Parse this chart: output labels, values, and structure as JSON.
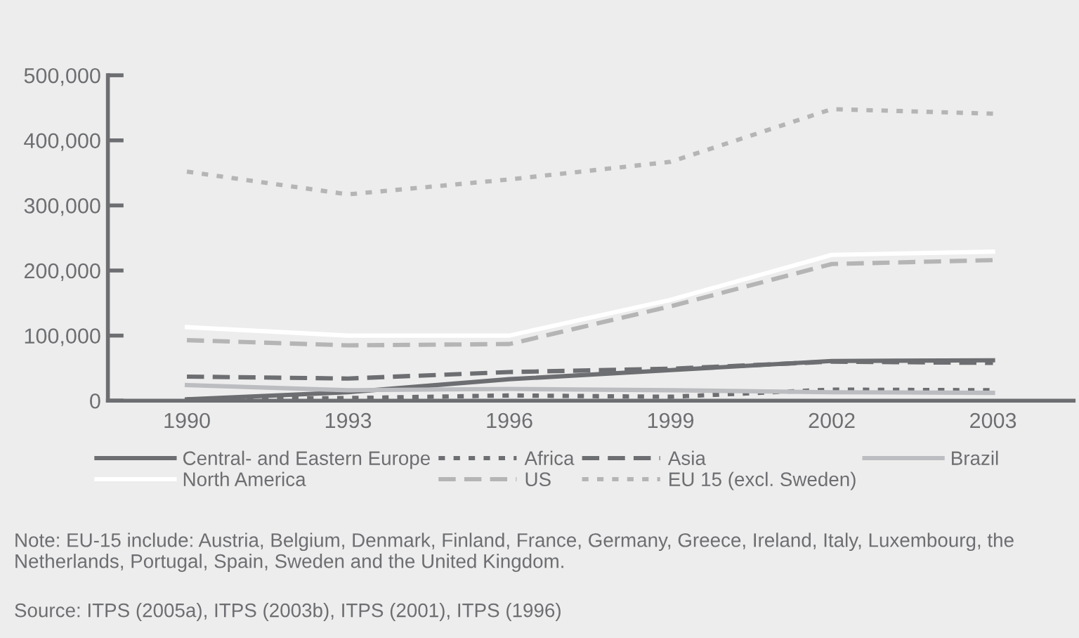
{
  "chart_data": {
    "type": "line",
    "categories": [
      "1990",
      "1993",
      "1996",
      "1999",
      "2002",
      "2003"
    ],
    "series": [
      {
        "name": "Central- and Eastern Europe",
        "color": "#6d6e71",
        "line_style": "solid",
        "values": [
          2000,
          13000,
          33000,
          47000,
          61000,
          62000
        ]
      },
      {
        "name": "Africa",
        "color": "#6d6e71",
        "line_style": "dotted",
        "values": [
          2000,
          4000,
          8000,
          6000,
          17000,
          16000
        ]
      },
      {
        "name": "Asia",
        "color": "#6d6e71",
        "line_style": "dashed",
        "values": [
          37000,
          34000,
          44000,
          49000,
          60000,
          58000
        ]
      },
      {
        "name": "Brazil",
        "color": "#bcbdc0",
        "line_style": "solid",
        "values": [
          24000,
          16000,
          18000,
          16000,
          13000,
          12000
        ]
      },
      {
        "name": "North America",
        "color": "#ffffff",
        "line_style": "solid",
        "values": [
          113000,
          100000,
          100000,
          155000,
          224000,
          229000
        ]
      },
      {
        "name": "US",
        "color": "#b5b5b5",
        "line_style": "dashed",
        "values": [
          93000,
          85000,
          87000,
          145000,
          210000,
          216000
        ]
      },
      {
        "name": "EU 15 (excl. Sweden)",
        "color": "#b5b5b5",
        "line_style": "dotted",
        "values": [
          352000,
          317000,
          340000,
          367000,
          448000,
          441000
        ]
      }
    ],
    "ylim": [
      0,
      500000
    ],
    "yticks": [
      {
        "value": 0,
        "label": "0"
      },
      {
        "value": 100000,
        "label": "100,000"
      },
      {
        "value": 200000,
        "label": "200,000"
      },
      {
        "value": 300000,
        "label": "300,000"
      },
      {
        "value": 400000,
        "label": "400,000"
      },
      {
        "value": 500000,
        "label": "500,000"
      }
    ],
    "grid": false,
    "legend": "bottom",
    "marker": "none",
    "annotations": [
      "Note: EU-15 include: Austria, Belgium, Denmark, Finland, France, Germany, Greece, Ireland, Italy, Luxembourg, the Netherlands, Portugal, Spain, Sweden and the United Kingdom.",
      "Source: ITPS (2005a), ITPS (2003b), ITPS (2001), ITPS (1996)"
    ]
  }
}
